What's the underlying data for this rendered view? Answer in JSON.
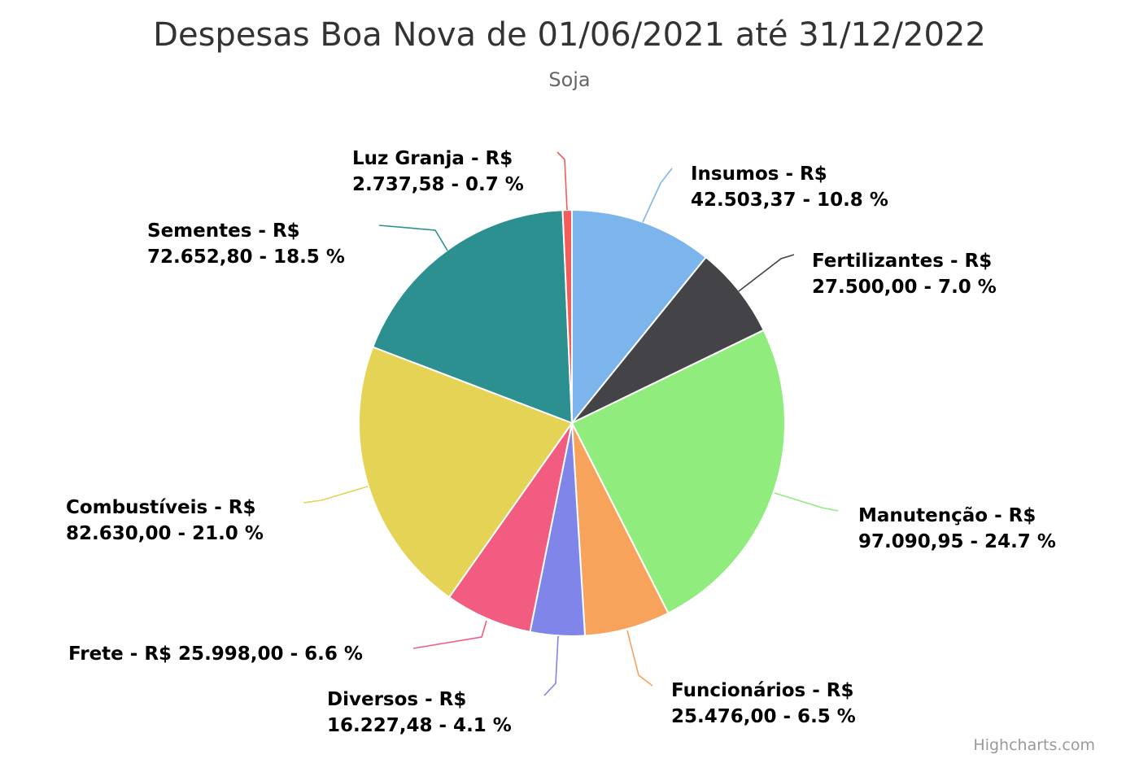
{
  "chart_data": {
    "type": "pie",
    "title": "Despesas Boa Nova de 01/06/2021 até 31/12/2022",
    "subtitle": "Soja",
    "slices": [
      {
        "name": "Insumos",
        "value": 42503.37,
        "value_label": "42.503,37",
        "percent": "10.8",
        "color": "#7cb5ec"
      },
      {
        "name": "Fertilizantes",
        "value": 27500.0,
        "value_label": "27.500,00",
        "percent": "7.0",
        "color": "#434348"
      },
      {
        "name": "Manutenção",
        "value": 97090.95,
        "value_label": "97.090,95",
        "percent": "24.7",
        "color": "#90ed7d"
      },
      {
        "name": "Funcionários",
        "value": 25476.0,
        "value_label": "25.476,00",
        "percent": "6.5",
        "color": "#f7a35c"
      },
      {
        "name": "Diversos",
        "value": 16227.48,
        "value_label": "16.227,48",
        "percent": "4.1",
        "color": "#8085e9"
      },
      {
        "name": "Frete",
        "value": 25998.0,
        "value_label": "25.998,00",
        "percent": "6.6",
        "color": "#f15c80"
      },
      {
        "name": "Combustíveis",
        "value": 82630.0,
        "value_label": "82.630,00",
        "percent": "21.0",
        "color": "#e4d354"
      },
      {
        "name": "Sementes",
        "value": 72652.8,
        "value_label": "72.652,80",
        "percent": "18.5",
        "color": "#2b908f"
      },
      {
        "name": "Luz Granja",
        "value": 2737.58,
        "value_label": "2.737,58",
        "percent": "0.7",
        "color": "#f45b5b"
      }
    ],
    "currency_prefix": "R$",
    "legend": "none"
  },
  "credits": "Highcharts.com"
}
